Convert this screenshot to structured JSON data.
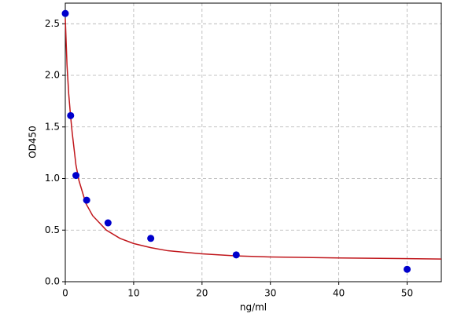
{
  "chart_data": {
    "type": "scatter",
    "x_label": "ng/ml",
    "y_label": "OD450",
    "points": {
      "color": "#0000cc",
      "x": [
        0,
        0.78,
        1.56,
        3.125,
        6.25,
        12.5,
        25,
        50
      ],
      "y": [
        2.6,
        1.61,
        1.03,
        0.79,
        0.57,
        0.42,
        0.26,
        0.12
      ]
    },
    "curve": {
      "color": "#c0161b",
      "x": [
        0,
        0.25,
        0.5,
        0.78,
        1,
        1.56,
        2,
        3,
        4,
        6,
        8,
        10,
        12.5,
        15,
        20,
        25,
        30,
        40,
        55
      ],
      "y": [
        2.55,
        2.1,
        1.82,
        1.6,
        1.45,
        1.13,
        0.98,
        0.76,
        0.64,
        0.5,
        0.42,
        0.37,
        0.33,
        0.3,
        0.27,
        0.25,
        0.24,
        0.23,
        0.22
      ]
    },
    "xlim": [
      0,
      55
    ],
    "ylim": [
      0,
      2.7
    ],
    "xticks": [
      0,
      10,
      20,
      30,
      40,
      50
    ],
    "yticks": [
      {
        "value": 0,
        "label": "0.0"
      },
      {
        "value": 0.5,
        "label": "0.5"
      },
      {
        "value": 1,
        "label": "1.0"
      },
      {
        "value": 1.5,
        "label": "1.5"
      },
      {
        "value": 2,
        "label": "2.0"
      },
      {
        "value": 2.5,
        "label": "2.5"
      }
    ],
    "grid": true
  }
}
